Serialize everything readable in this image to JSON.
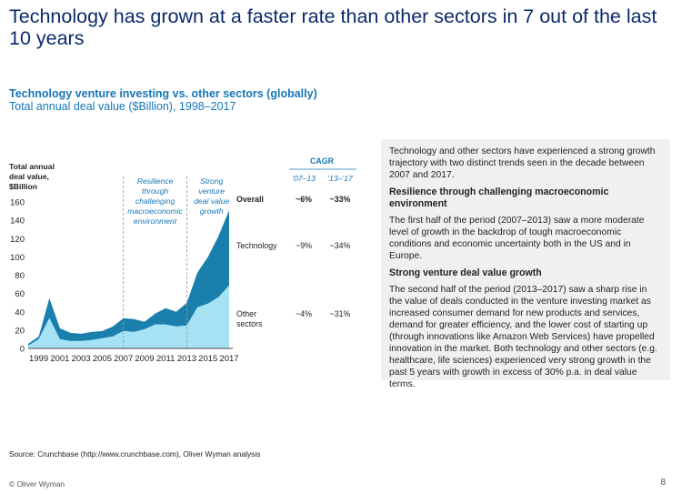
{
  "title": "Technology has grown at a faster rate than other sectors in 7 out of the last 10 years",
  "chart_heading": "Technology venture investing vs. other sectors (globally)",
  "chart_subheading": "Total annual deal value ($Billion), 1998–2017",
  "chart_data": {
    "type": "area",
    "ylabel_lines": [
      "Total annual",
      "deal value,",
      "$Billion"
    ],
    "x": [
      1998,
      1999,
      2000,
      2001,
      2002,
      2003,
      2004,
      2005,
      2006,
      2007,
      2008,
      2009,
      2010,
      2011,
      2012,
      2013,
      2014,
      2015,
      2016,
      2017
    ],
    "xticks": [
      1999,
      2001,
      2003,
      2005,
      2007,
      2009,
      2011,
      2013,
      2015,
      2017
    ],
    "ylim": [
      0,
      160
    ],
    "yticks": [
      0,
      20,
      40,
      60,
      80,
      100,
      120,
      140,
      160
    ],
    "stacked": true,
    "series": [
      {
        "name": "Other sectors",
        "values": [
          3,
          10,
          33,
          10,
          8,
          8,
          9,
          11,
          13,
          19,
          18,
          21,
          26,
          26,
          24,
          25,
          45,
          49,
          56,
          69
        ],
        "color": "#a5e3f4"
      },
      {
        "name": "Technology",
        "values": [
          2,
          3,
          22,
          12,
          9,
          8,
          9,
          8,
          11,
          14,
          14,
          8,
          12,
          18,
          16,
          25,
          38,
          51,
          67,
          82
        ],
        "color": "#1a7fad"
      }
    ],
    "periods": [
      {
        "start": 2007,
        "lines": [
          "Resilience",
          "through",
          "challenging",
          "macroeconomic",
          "environment"
        ]
      },
      {
        "start": 2013,
        "lines": [
          "Strong",
          "venture",
          "deal value",
          "growth"
        ]
      }
    ],
    "cagr": {
      "header": "CAGR",
      "columns": [
        "’07–13",
        "’13–’17"
      ],
      "rows": [
        {
          "label_lines": [
            "Overall"
          ],
          "values": [
            "~6%",
            "~33%"
          ],
          "bold": true
        },
        {
          "label_lines": [
            "Technology"
          ],
          "values": [
            "~9%",
            "~34%"
          ],
          "bold": false
        },
        {
          "label_lines": [
            "Other",
            "sectors"
          ],
          "values": [
            "~4%",
            "~31%"
          ],
          "bold": false
        }
      ]
    }
  },
  "side_panel": {
    "intro": "Technology and other sectors have experienced a strong growth trajectory with two distinct trends seen in the decade between 2007 and 2017.",
    "section1_heading": "Resilience through challenging macroeconomic environment",
    "section1_body": "The first half of the period (2007–2013) saw a more moderate level of growth in the backdrop of tough macroeconomic conditions and economic uncertainty both in the US and in Europe.",
    "section2_heading": "Strong venture deal value growth",
    "section2_body": "The second half of the period (2013–2017) saw a sharp rise in the value of deals conducted in the venture investing market as increased consumer demand for new products and services, demand for greater efficiency, and the lower cost of starting up (through innovations like Amazon Web Services) have propelled innovation in the market. Both technology and other sectors (e.g. healthcare, life sciences) experienced very strong growth in the past 5 years with growth in excess of 30% p.a. in deal value terms."
  },
  "source": "Source: Crunchbase (http://www.crunchbase.com), Oliver Wyman analysis",
  "footer": {
    "copyright": "© Oliver Wyman",
    "page_number": "8"
  }
}
